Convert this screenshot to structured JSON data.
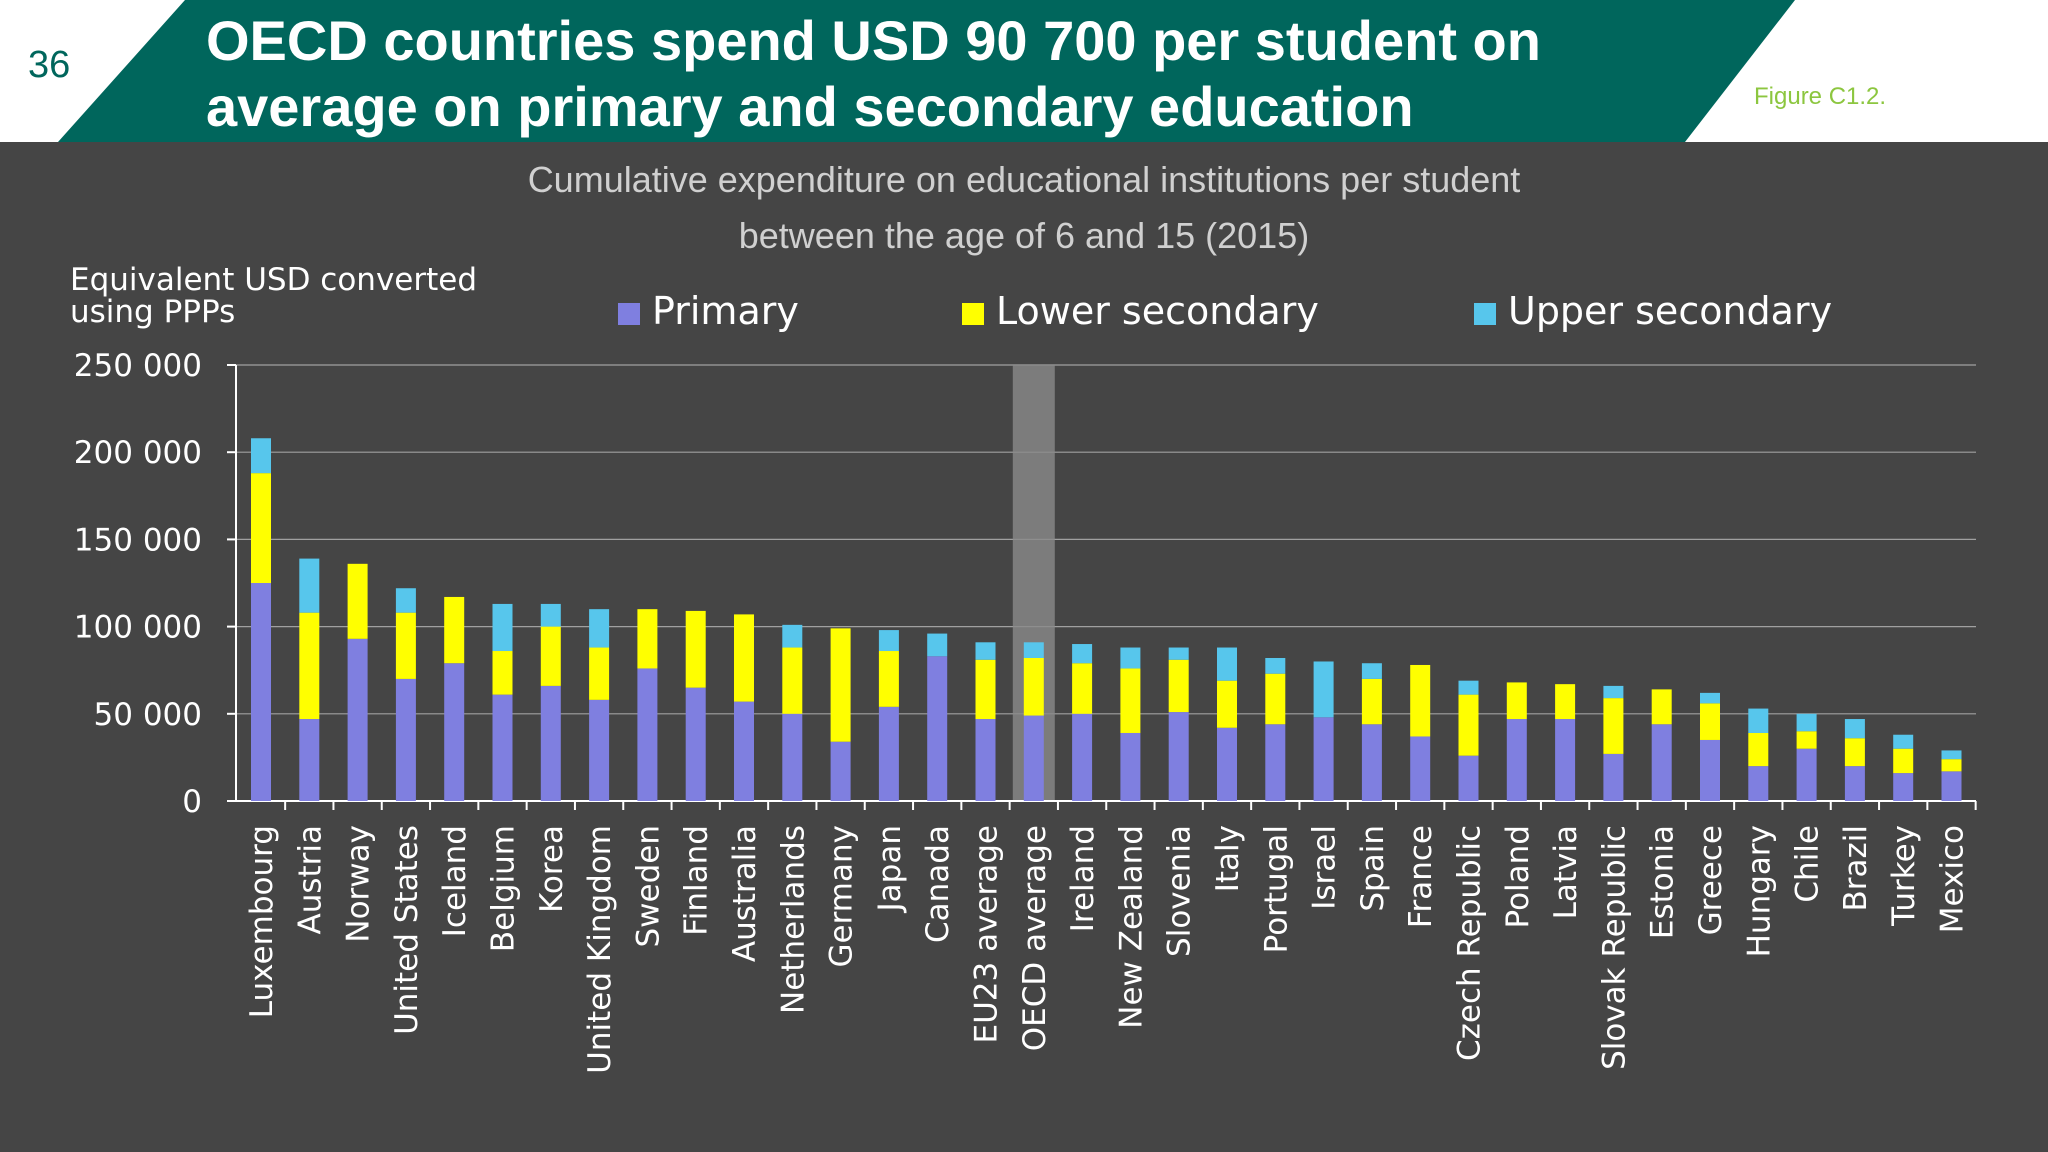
{
  "slide": {
    "number": "36",
    "title_line1": "OECD countries spend USD 90 700 per student on",
    "title_line2": "average on primary and secondary education",
    "figure_label": "Figure C1.2."
  },
  "colors": {
    "teal": "#00665c",
    "primary": "#7f7fe0",
    "lower_secondary": "#ffff00",
    "upper_secondary": "#57c6ec",
    "panel": "#454545",
    "figure_label": "#8cc63f"
  },
  "chart_data": {
    "type": "bar",
    "stacked": true,
    "title": "Cumulative expenditure on educational institutions per student",
    "subtitle": "between the age of 6 and 15 (2015)",
    "ylabel_line1": "Equivalent USD converted",
    "ylabel_line2": "using PPPs",
    "ylim": [
      0,
      250000
    ],
    "yticks": [
      0,
      50000,
      100000,
      150000,
      200000,
      250000
    ],
    "ytick_labels": [
      "0",
      "50 000",
      "100 000",
      "150 000",
      "200 000",
      "250 000"
    ],
    "grid": true,
    "legend_position": "top",
    "highlighted_category": "OECD average",
    "categories": [
      "Luxembourg",
      "Austria",
      "Norway",
      "United States",
      "Iceland",
      "Belgium",
      "Korea",
      "United Kingdom",
      "Sweden",
      "Finland",
      "Australia",
      "Netherlands",
      "Germany",
      "Japan",
      "Canada",
      "EU23 average",
      "OECD average",
      "Ireland",
      "New Zealand",
      "Slovenia",
      "Italy",
      "Portugal",
      "Israel",
      "Spain",
      "France",
      "Czech Republic",
      "Poland",
      "Latvia",
      "Slovak Republic",
      "Estonia",
      "Greece",
      "Hungary",
      "Chile",
      "Brazil",
      "Turkey",
      "Mexico"
    ],
    "series": [
      {
        "name": "Primary",
        "color": "#7f7fe0",
        "values": [
          125000,
          47000,
          93000,
          70000,
          79000,
          61000,
          66000,
          58000,
          76000,
          65000,
          57000,
          50000,
          34000,
          54000,
          83000,
          47000,
          49000,
          50000,
          39000,
          51000,
          42000,
          44000,
          48000,
          44000,
          37000,
          26000,
          47000,
          47000,
          27000,
          44000,
          35000,
          20000,
          30000,
          20000,
          16000,
          17000
        ]
      },
      {
        "name": "Lower secondary",
        "color": "#ffff00",
        "values": [
          63000,
          61000,
          43000,
          38000,
          38000,
          25000,
          34000,
          30000,
          34000,
          44000,
          50000,
          38000,
          65000,
          32000,
          0,
          34000,
          33000,
          29000,
          37000,
          30000,
          27000,
          29000,
          0,
          26000,
          41000,
          35000,
          21000,
          20000,
          32000,
          20000,
          21000,
          19000,
          10000,
          16000,
          14000,
          7000
        ]
      },
      {
        "name": "Upper secondary",
        "color": "#57c6ec",
        "values": [
          20000,
          31000,
          0,
          14000,
          0,
          27000,
          13000,
          22000,
          0,
          0,
          0,
          13000,
          0,
          12000,
          13000,
          10000,
          9000,
          11000,
          12000,
          7000,
          19000,
          9000,
          32000,
          9000,
          0,
          8000,
          0,
          0,
          7000,
          0,
          6000,
          14000,
          10000,
          11000,
          8000,
          5000
        ]
      }
    ]
  }
}
